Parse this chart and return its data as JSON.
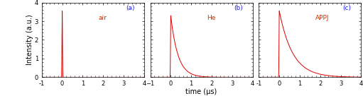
{
  "panels": [
    {
      "label": "(a)",
      "sublabel": "air",
      "peak": 3.55,
      "decay_tau": 0.02,
      "has_decay": false
    },
    {
      "label": "(b)",
      "sublabel": "He",
      "peak": 3.3,
      "decay_tau": 0.35,
      "has_decay": true
    },
    {
      "label": "(c)",
      "sublabel": "APPJ",
      "peak": 3.55,
      "decay_tau": 0.65,
      "has_decay": true
    }
  ],
  "xlim": [
    -1,
    4
  ],
  "ylim": [
    0,
    4
  ],
  "xticks": [
    -1,
    0,
    1,
    2,
    3,
    4
  ],
  "yticks": [
    0,
    1,
    2,
    3,
    4
  ],
  "xlabel": "time (μs)",
  "ylabel": "Intensity (a.u.)",
  "line_color": "#dd0000",
  "line_width": 0.7,
  "spike_sigma": 0.012,
  "background_color": "#ffffff",
  "label_color_letter": "#1a1aff",
  "label_color_word": "#cc3300",
  "label_fontsize": 6.5,
  "axis_fontsize": 7,
  "tick_fontsize": 6
}
